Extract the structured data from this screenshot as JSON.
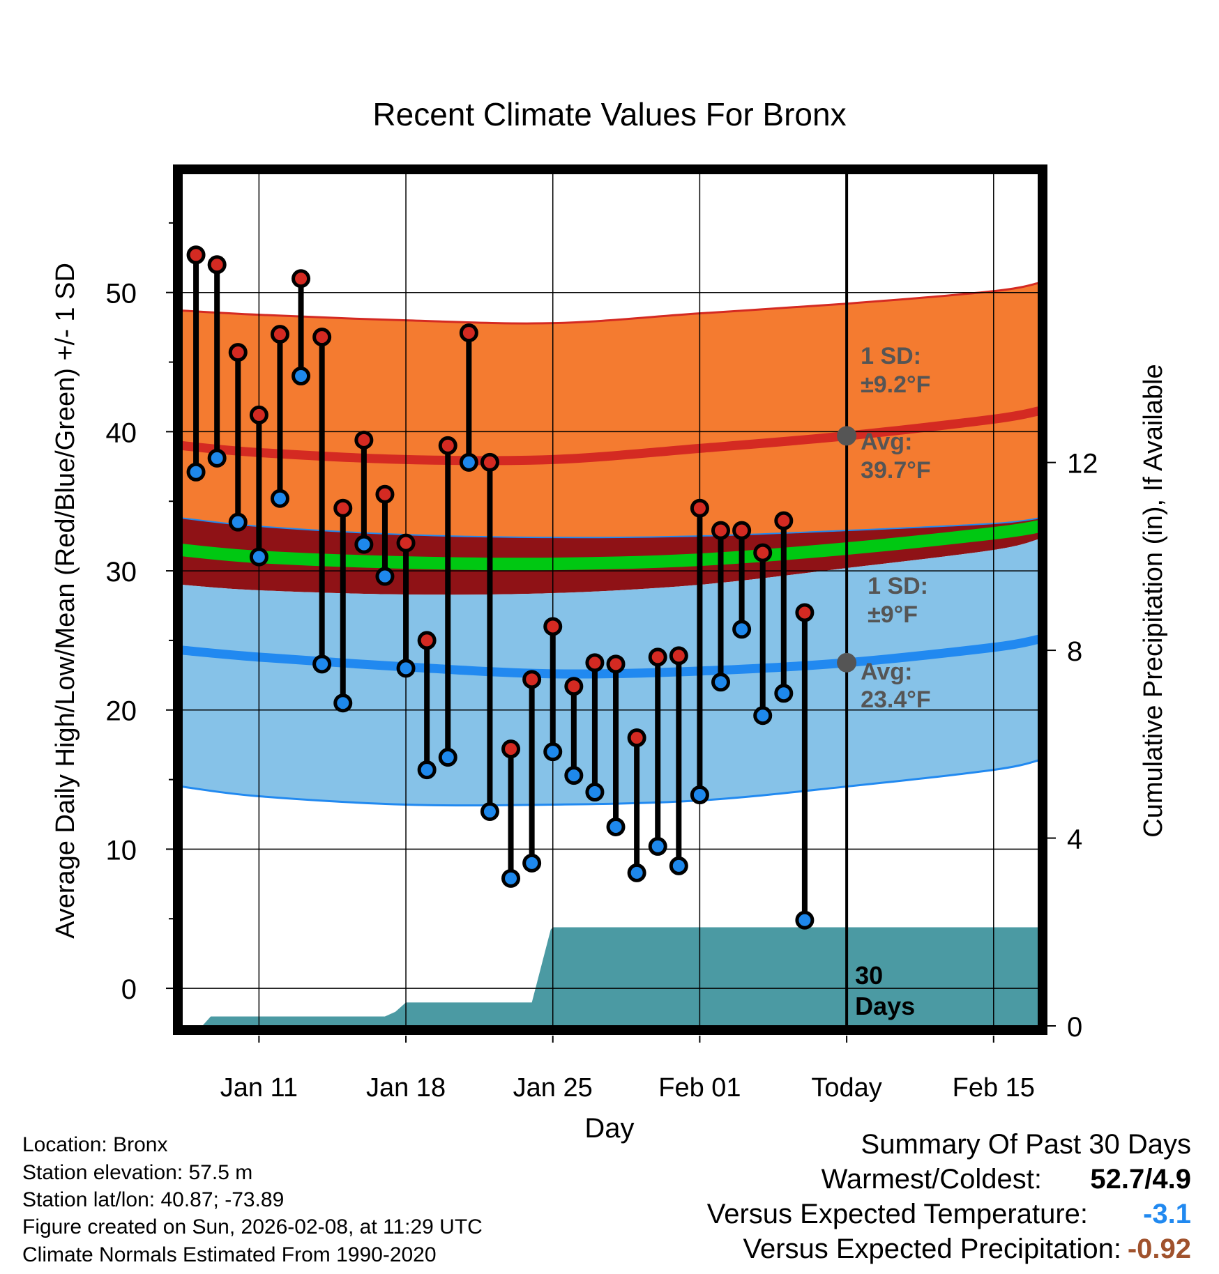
{
  "chart_data": {
    "type": "line",
    "title": "Recent Climate Values For Bronx",
    "xlabel": "Day",
    "ylabel": "Average Daily High/Low/Mean (Red/Blue/Green) +/- 1 SD",
    "y2label": "Cumulative Precipitation (in), If Available",
    "ylim": [
      -2.7,
      58.5
    ],
    "y2lim": [
      0,
      18.14
    ],
    "xlim": [
      7.3,
      48.2
    ],
    "x_ticks": [
      {
        "day": 11,
        "label": "Jan 11"
      },
      {
        "day": 18,
        "label": "Jan 18"
      },
      {
        "day": 25,
        "label": "Jan 25"
      },
      {
        "day": 32,
        "label": "Feb 01"
      },
      {
        "day": 39,
        "label": "Today"
      },
      {
        "day": 46,
        "label": "Feb 15"
      }
    ],
    "y_ticks": [
      0,
      10,
      20,
      30,
      40,
      50
    ],
    "y2_ticks": [
      0,
      4,
      8,
      12
    ],
    "today_day": 39,
    "days": [
      8,
      9,
      10,
      11,
      12,
      13,
      14,
      15,
      16,
      17,
      18,
      19,
      20,
      21,
      22,
      23,
      24,
      25,
      26,
      27,
      28,
      29,
      30,
      31,
      32,
      33,
      34,
      35,
      36,
      37,
      38
    ],
    "highs": [
      52.7,
      52.0,
      45.7,
      41.2,
      47.0,
      51.0,
      46.8,
      34.5,
      39.4,
      35.5,
      32.0,
      25.0,
      39.0,
      47.1,
      37.8,
      17.2,
      22.2,
      26.0,
      21.7,
      23.4,
      23.3,
      18.0,
      23.8,
      23.9,
      34.5,
      32.9,
      32.9,
      31.3,
      33.6,
      27.0,
      null
    ],
    "lows": [
      37.1,
      38.1,
      33.5,
      31.0,
      35.2,
      44.0,
      23.3,
      20.5,
      31.9,
      29.6,
      23.0,
      15.7,
      16.6,
      37.8,
      12.7,
      7.9,
      9.0,
      17.0,
      15.3,
      14.1,
      11.6,
      8.3,
      10.2,
      8.8,
      13.9,
      22.0,
      25.8,
      19.6,
      21.2,
      4.9,
      null
    ],
    "normals": {
      "days": [
        7.3,
        11,
        18,
        25,
        32,
        39,
        46,
        48.2
      ],
      "high_avg": [
        39.0,
        38.5,
        38.0,
        38.0,
        38.8,
        39.7,
        40.9,
        41.5
      ],
      "high_upper": [
        48.7,
        48.4,
        48.0,
        47.8,
        48.5,
        49.2,
        50.1,
        50.7
      ],
      "high_lower": [
        33.8,
        33.2,
        32.6,
        32.4,
        32.5,
        32.9,
        33.4,
        33.8
      ],
      "low_avg": [
        24.3,
        23.8,
        23.1,
        22.6,
        22.8,
        23.4,
        24.5,
        25.1
      ],
      "low_upper": [
        29.0,
        28.6,
        28.3,
        28.4,
        29.0,
        30.2,
        31.5,
        32.3
      ],
      "low_lower": [
        14.5,
        13.8,
        13.2,
        13.2,
        13.5,
        14.5,
        15.7,
        16.4
      ],
      "mean_avg": [
        31.5,
        31.0,
        30.6,
        30.5,
        30.8,
        31.6,
        32.7,
        33.2
      ]
    },
    "precip_cumulative": {
      "days": [
        7.3,
        8.3,
        8.7,
        10,
        11,
        17,
        17.5,
        18,
        19,
        24,
        24.9,
        25,
        39,
        48.2
      ],
      "values": [
        0,
        0,
        0.2,
        0.2,
        0.2,
        0.2,
        0.3,
        0.5,
        0.5,
        0.5,
        2.05,
        2.1,
        2.1,
        2.1
      ]
    },
    "annotations": {
      "high_sd": "1 SD:",
      "high_sd_value": "±9.2°F",
      "high_avg_label": "Avg:",
      "high_avg_value": "39.7°F",
      "low_sd": "1 SD:",
      "low_sd_value": "±9°F",
      "low_avg_label": "Avg:",
      "low_avg_value": "23.4°F",
      "days_label_1": "30",
      "days_label_2": "Days"
    },
    "colors": {
      "high_band": "#f47b30",
      "high_avg_line": "#d42a22",
      "mean_band": "#8f1216",
      "mean_line": "#00c812",
      "low_band": "#86c2e8",
      "low_avg_line": "#2189f0",
      "precip_fill": "#4b9aa3",
      "high_dot": "#d42a22",
      "low_dot": "#1e88ec",
      "marker_today": "#555555",
      "annotation_text": "#555555"
    }
  },
  "info": {
    "location": "Location: Bronx",
    "elevation": "Station elevation: 57.5 m",
    "latlon": "Station lat/lon: 40.87; -73.89",
    "created": "Figure created on Sun, 2026-02-08, at 11:29 UTC",
    "normals": "Climate Normals Estimated From 1990-2020"
  },
  "summary": {
    "title": "Summary Of Past 30 Days",
    "warmest_label": "Warmest/Coldest:",
    "warmest_value": "52.7/4.9",
    "temp_label": "Versus Expected Temperature:",
    "temp_value": "-3.1",
    "temp_color": "#2189f0",
    "precip_label": "Versus Expected Precipitation:",
    "precip_value": "-0.92",
    "precip_color": "#a0522d"
  }
}
